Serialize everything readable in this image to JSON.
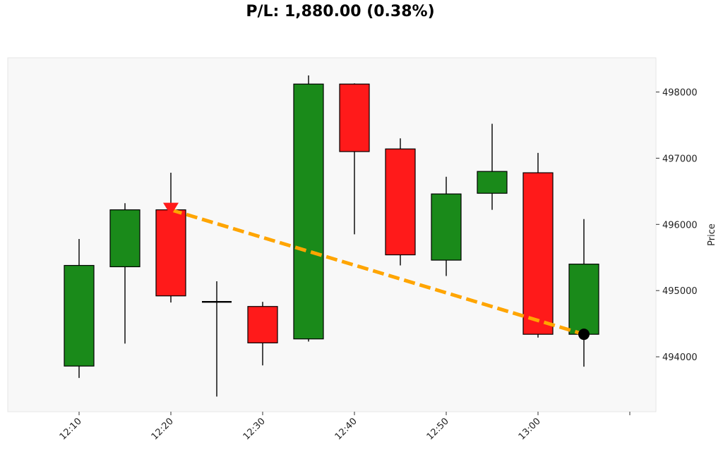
{
  "chart_data": {
    "type": "candlestick",
    "title": "P/L: 1,880.00 (0.38%)",
    "xlabel": "",
    "ylabel": "Price",
    "ylim": [
      493200,
      498500
    ],
    "grid": false,
    "x_ticks": [
      "12:10",
      "12:20",
      "12:30",
      "12:40",
      "12:50",
      "13:00",
      ""
    ],
    "candles": [
      {
        "time": "12:10",
        "open": 493860,
        "high": 495780,
        "low": 493680,
        "close": 495380
      },
      {
        "time": "12:15",
        "open": 495360,
        "high": 496320,
        "low": 494200,
        "close": 496220
      },
      {
        "time": "12:20",
        "open": 496220,
        "high": 496780,
        "low": 494820,
        "close": 494920
      },
      {
        "time": "12:25",
        "open": 494830,
        "high": 495140,
        "low": 493400,
        "close": 494830
      },
      {
        "time": "12:30",
        "open": 494760,
        "high": 494830,
        "low": 493870,
        "close": 494210
      },
      {
        "time": "12:35",
        "open": 494270,
        "high": 498250,
        "low": 494230,
        "close": 498120
      },
      {
        "time": "12:40",
        "open": 498120,
        "high": 498130,
        "low": 495850,
        "close": 497100
      },
      {
        "time": "12:45",
        "open": 497140,
        "high": 497300,
        "low": 495380,
        "close": 495540
      },
      {
        "time": "12:50",
        "open": 495460,
        "high": 496720,
        "low": 495220,
        "close": 496460
      },
      {
        "time": "12:55",
        "open": 496470,
        "high": 497520,
        "low": 496220,
        "close": 496800
      },
      {
        "time": "13:00",
        "open": 496780,
        "high": 497080,
        "low": 494290,
        "close": 494340
      },
      {
        "time": "13:05",
        "open": 494340,
        "high": 496080,
        "low": 493850,
        "close": 495400
      }
    ],
    "trade": {
      "entry": {
        "time": "12:20",
        "price": 496220,
        "marker": "down-triangle"
      },
      "exit": {
        "time": "13:05",
        "price": 494340,
        "marker": "circle"
      }
    },
    "colors": {
      "up": "#1a8a1a",
      "down": "#ff1a1a",
      "trade_line": "#ffa500",
      "entry_marker": "#ff1a1a",
      "exit_marker": "#000000",
      "plot_bg": "#f8f8f8"
    }
  }
}
